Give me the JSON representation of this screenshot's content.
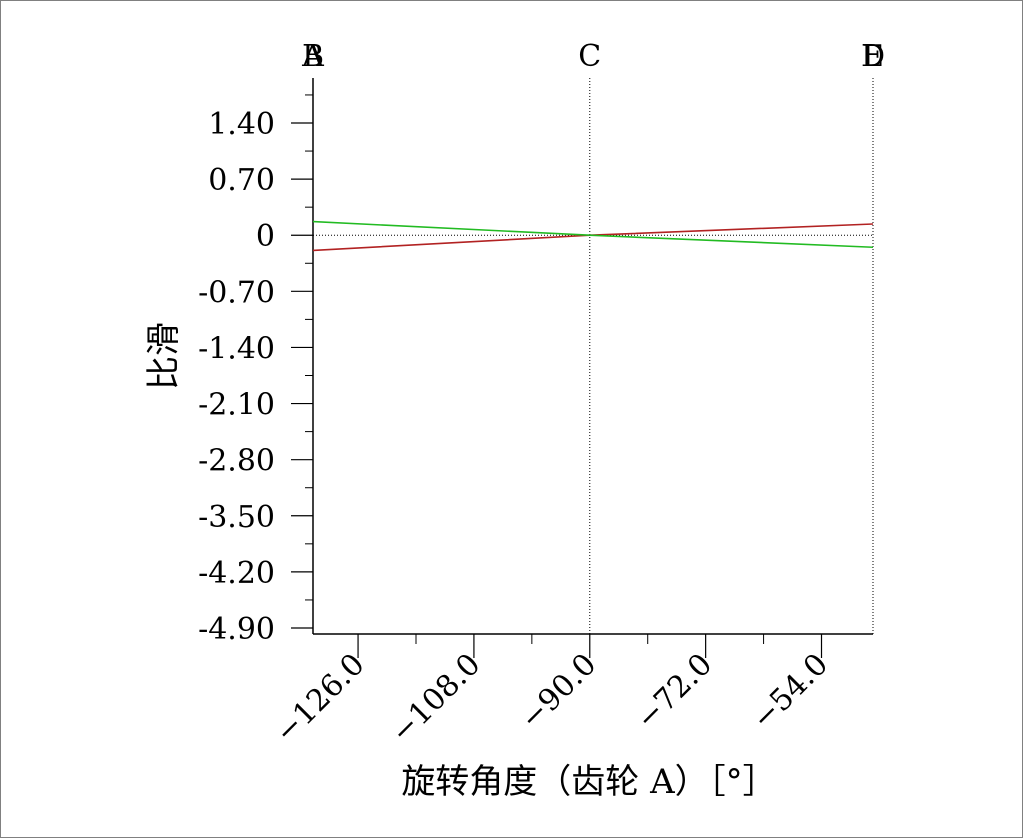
{
  "chart_data": {
    "type": "line",
    "xlabel": "旋转角度（齿轮 A）［°］",
    "ylabel": "比滑",
    "xlim": [
      -133,
      -46
    ],
    "ylim": [
      -4.9,
      1.4
    ],
    "y_ticks": [
      1.4,
      0.7,
      0,
      -0.7,
      -1.4,
      -2.1,
      -2.8,
      -3.5,
      -4.2,
      -4.9
    ],
    "y_tick_labels": [
      "1.40",
      "0.70",
      "0",
      "-0.70",
      "-1.40",
      "-2.10",
      "-2.80",
      "-3.50",
      "-4.20",
      "-4.90"
    ],
    "x_ticks": [
      -126,
      -108,
      -90,
      -72,
      -54
    ],
    "x_tick_labels": [
      "−126.0",
      "−108.0",
      "−90.0",
      "−72.0",
      "−54.0"
    ],
    "markers": [
      {
        "label": "A",
        "x": -133
      },
      {
        "label": "B",
        "x": -133
      },
      {
        "label": "C",
        "x": -90
      },
      {
        "label": "D",
        "x": -46
      },
      {
        "label": "E",
        "x": -46
      }
    ],
    "series": [
      {
        "color": "#b22222",
        "x": [
          -133,
          -90,
          -46
        ],
        "y": [
          -0.19,
          0,
          0.14
        ]
      },
      {
        "color": "#22bb22",
        "x": [
          -133,
          -90,
          -46
        ],
        "y": [
          0.17,
          0,
          -0.15
        ]
      }
    ],
    "grid": false
  }
}
